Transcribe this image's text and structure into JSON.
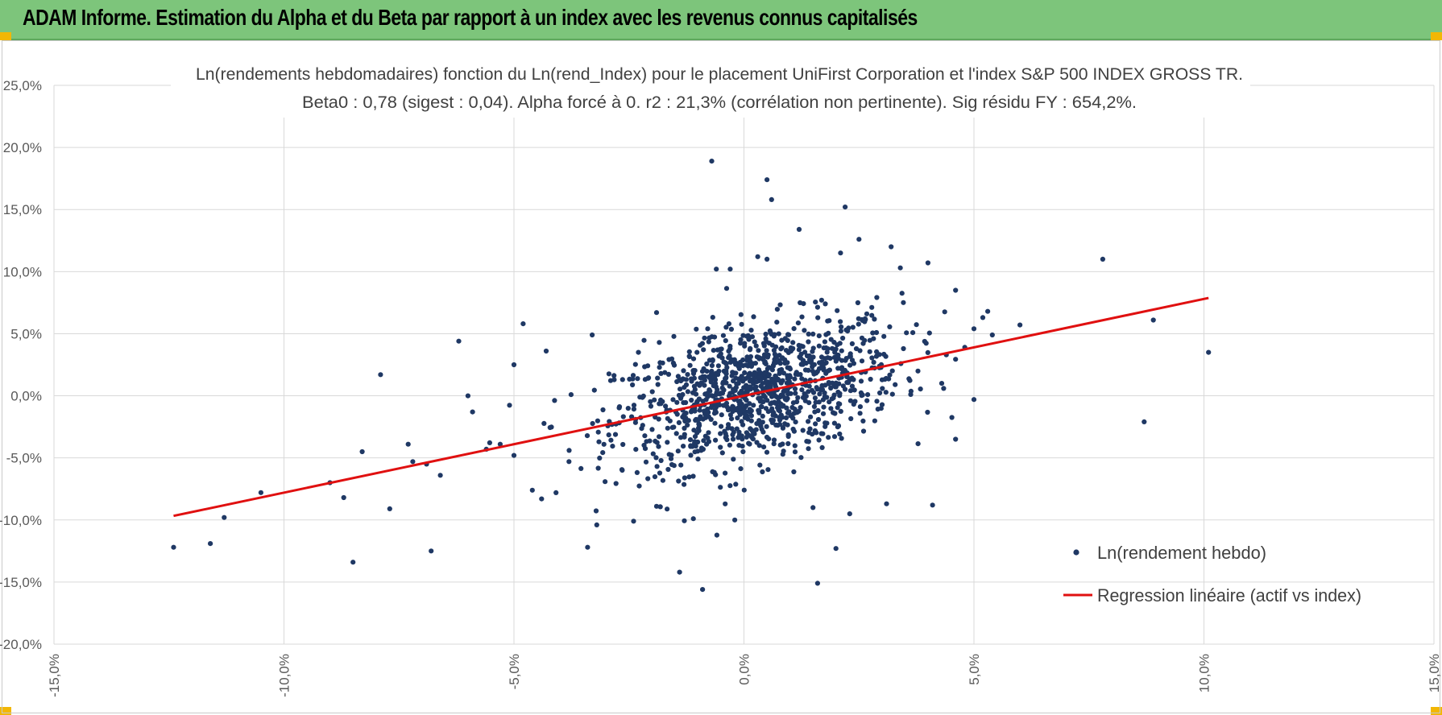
{
  "banner": {
    "title": "ADAM Informe. Estimation du Alpha et du Beta par rapport à un index avec les revenus connus capitalisés"
  },
  "colors": {
    "banner": "#7dc57b",
    "points": "#1f3864",
    "regression": "#e01010",
    "grid": "#d9d9d9"
  },
  "chart_data": {
    "type": "scatter",
    "title_line1": "Ln(rendements hebdomadaires) fonction du Ln(rend_Index) pour le placement UniFirst Corporation et l'index S&P 500 INDEX GROSS TR.",
    "title_line2": "Beta0 : 0,78 (sigest : 0,04).  Alpha forcé à 0. r2 : 21,3% (corrélation non pertinente). Sig résidu FY : 654,2%.",
    "xlim": [
      -15,
      15
    ],
    "ylim": [
      -20,
      25
    ],
    "x_ticks": [
      "-15,0%",
      "-10,0%",
      "-5,0%",
      "0,0%",
      "5,0%",
      "10,0%",
      "15,0%"
    ],
    "y_ticks": [
      "25,0%",
      "20,0%",
      "15,0%",
      "10,0%",
      "5,0%",
      "0,0%",
      "-5,0%",
      "-10,0%",
      "-15,0%",
      "-20,0%"
    ],
    "grid": true,
    "legend_position": "bottom-right",
    "series": [
      {
        "name": "Ln(rendement hebdo)",
        "kind": "points",
        "note_dense_cloud": "plus un nuage dense d'environ 1200 points autour de (0 ; 0), beta 0,78",
        "points": [
          [
            -12.4,
            -12.2
          ],
          [
            -11.6,
            -11.9
          ],
          [
            -11.3,
            -9.8
          ],
          [
            -10.5,
            -7.8
          ],
          [
            -9.0,
            -7.0
          ],
          [
            -8.7,
            -8.2
          ],
          [
            -8.5,
            -13.4
          ],
          [
            -8.3,
            -4.5
          ],
          [
            -7.9,
            1.7
          ],
          [
            -7.7,
            -9.1
          ],
          [
            -7.3,
            -3.9
          ],
          [
            -7.2,
            -5.3
          ],
          [
            -6.9,
            -5.5
          ],
          [
            -6.8,
            -12.5
          ],
          [
            -6.6,
            -6.4
          ],
          [
            -6.2,
            4.4
          ],
          [
            -6.0,
            0.0
          ],
          [
            -5.9,
            -1.3
          ],
          [
            -5.6,
            -4.3
          ],
          [
            -5.3,
            -3.9
          ],
          [
            -5.0,
            2.5
          ],
          [
            -5.0,
            -4.8
          ],
          [
            -4.8,
            5.8
          ],
          [
            -4.6,
            -7.6
          ],
          [
            -4.4,
            -8.3
          ],
          [
            -4.3,
            3.6
          ],
          [
            -3.8,
            -4.4
          ],
          [
            -3.4,
            -12.2
          ],
          [
            -3.2,
            -10.4
          ],
          [
            -3.3,
            4.9
          ],
          [
            -2.4,
            -10.1
          ],
          [
            -1.9,
            -8.9
          ],
          [
            -1.9,
            6.7
          ],
          [
            -1.4,
            -14.2
          ],
          [
            -1.1,
            -9.9
          ],
          [
            -0.9,
            -15.6
          ],
          [
            -0.7,
            18.9
          ],
          [
            -0.6,
            10.2
          ],
          [
            -0.3,
            10.2
          ],
          [
            -0.2,
            -10.0
          ],
          [
            0.3,
            11.2
          ],
          [
            0.5,
            11.0
          ],
          [
            0.5,
            17.4
          ],
          [
            0.6,
            15.8
          ],
          [
            1.2,
            13.4
          ],
          [
            1.5,
            -9.0
          ],
          [
            1.6,
            -15.1
          ],
          [
            2.0,
            -12.3
          ],
          [
            2.1,
            11.5
          ],
          [
            2.2,
            15.2
          ],
          [
            2.3,
            -9.5
          ],
          [
            2.5,
            12.6
          ],
          [
            3.1,
            -8.7
          ],
          [
            3.2,
            12.0
          ],
          [
            3.4,
            10.3
          ],
          [
            4.0,
            10.7
          ],
          [
            4.1,
            -8.8
          ],
          [
            4.3,
            1.0
          ],
          [
            4.4,
            3.3
          ],
          [
            4.6,
            8.5
          ],
          [
            4.6,
            -3.5
          ],
          [
            4.8,
            3.9
          ],
          [
            5.0,
            -0.3
          ],
          [
            5.0,
            5.4
          ],
          [
            5.3,
            6.8
          ],
          [
            5.4,
            4.9
          ],
          [
            6.0,
            5.7
          ],
          [
            7.8,
            11.0
          ],
          [
            8.7,
            -2.1
          ],
          [
            8.9,
            6.1
          ],
          [
            10.1,
            3.5
          ]
        ]
      },
      {
        "name": "Regression linéaire (actif vs index)",
        "kind": "line",
        "beta": 0.78,
        "x_range": [
          -12.4,
          10.1
        ]
      }
    ]
  }
}
